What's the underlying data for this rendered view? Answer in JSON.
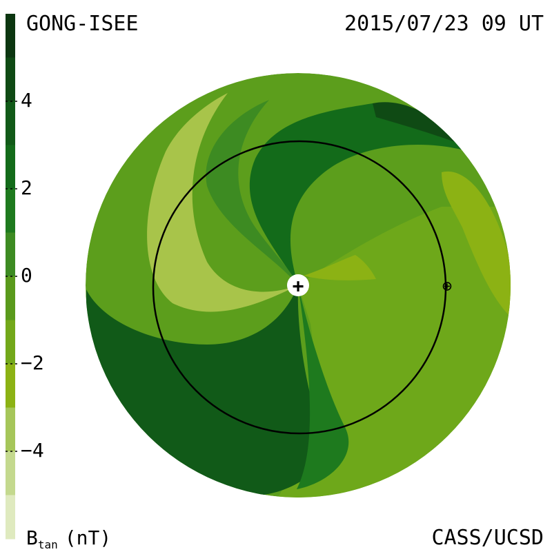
{
  "header": {
    "source": "GONG-ISEE",
    "datetime": "2015/07/23 09 UT"
  },
  "footer": {
    "credit": "CASS/UCSD"
  },
  "colorbar": {
    "quantity": "B",
    "quantity_subscript": "tan",
    "unit": "(nT)",
    "min": -6,
    "max": 6,
    "tick_labels": [
      {
        "value": 4,
        "label": "4"
      },
      {
        "value": 2,
        "label": "2"
      },
      {
        "value": 0,
        "label": "0"
      },
      {
        "value": -2,
        "label": "−2"
      },
      {
        "value": -4,
        "label": "−4"
      }
    ],
    "levels": [
      {
        "from": 5,
        "to": 6,
        "color": "#0c3610"
      },
      {
        "from": 4,
        "to": 5,
        "color": "#0f4a14"
      },
      {
        "from": 3,
        "to": 4,
        "color": "#115a18"
      },
      {
        "from": 2,
        "to": 3,
        "color": "#136b1a"
      },
      {
        "from": 1,
        "to": 2,
        "color": "#1e7a1e"
      },
      {
        "from": 0,
        "to": 1,
        "color": "#3d8b22"
      },
      {
        "from": -1,
        "to": 0,
        "color": "#5a9a1c"
      },
      {
        "from": -2,
        "to": -1,
        "color": "#73a81a"
      },
      {
        "from": -3,
        "to": -2,
        "color": "#8cb214"
      },
      {
        "from": -4,
        "to": -3,
        "color": "#a6c65a"
      },
      {
        "from": -5,
        "to": -4,
        "color": "#c4d98e"
      },
      {
        "from": -6,
        "to": -5,
        "color": "#dfeabf"
      }
    ]
  },
  "map": {
    "background_color": "#5c9e1c",
    "earth_orbit_color": "#000000",
    "sun_marker_glyph": "+",
    "earth_marker_glyph": "⊕"
  }
}
